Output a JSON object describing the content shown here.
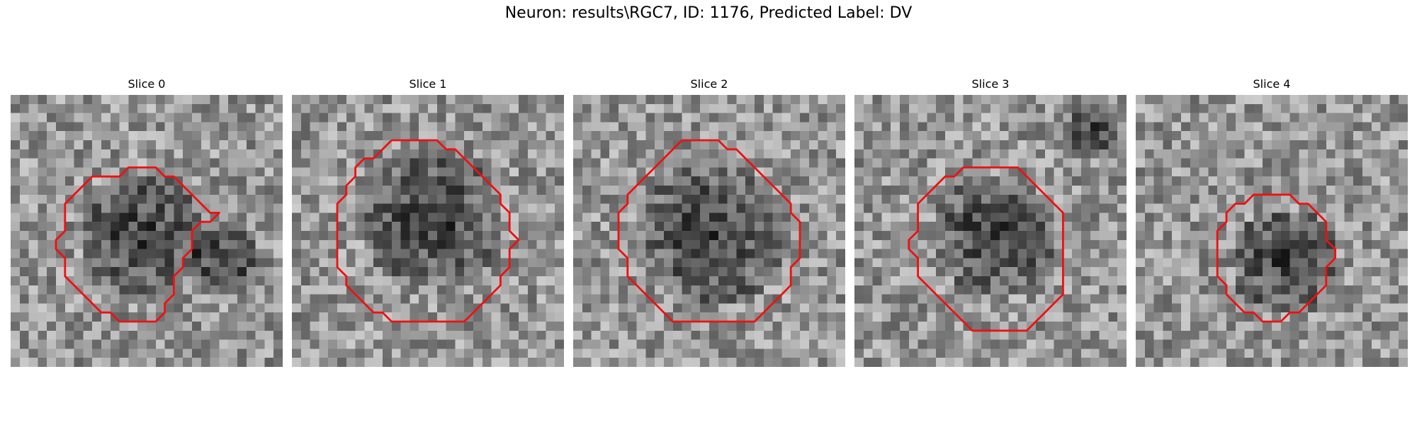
{
  "figure": {
    "title": "Neuron: results\\RGC7, ID: 1176, Predicted Label: DV"
  },
  "contour_color": "#ee1111",
  "slices": [
    {
      "title": "Slice 0"
    },
    {
      "title": "Slice 1"
    },
    {
      "title": "Slice 2"
    },
    {
      "title": "Slice 3"
    },
    {
      "title": "Slice 4"
    }
  ]
}
